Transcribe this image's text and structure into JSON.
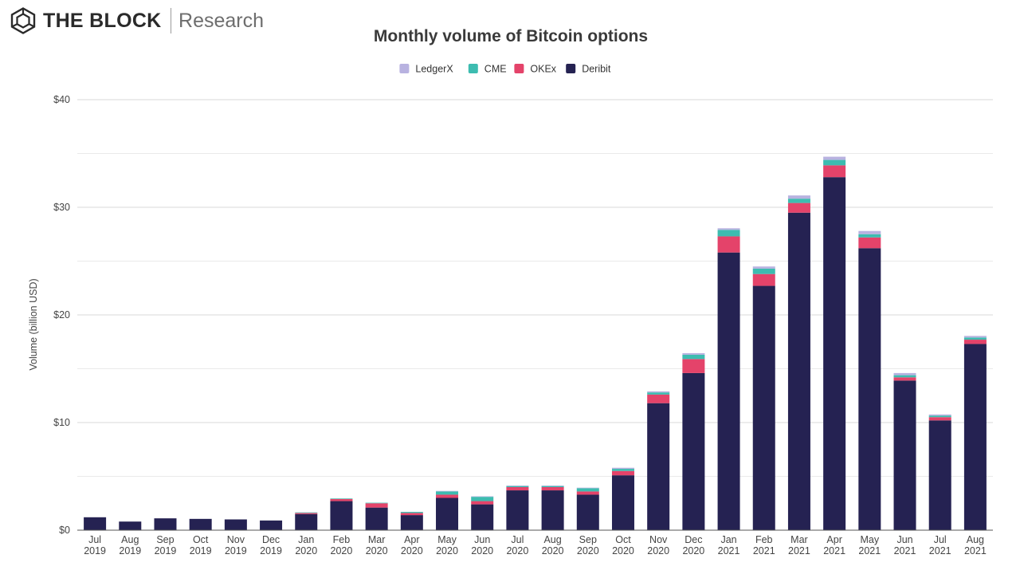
{
  "brand": {
    "name": "THE BLOCK",
    "sub": "Research"
  },
  "chart_data": {
    "type": "bar",
    "stacked": true,
    "title": "Monthly volume of Bitcoin options",
    "ylabel": "Volume (billion USD)",
    "xlabel": "",
    "ylim": [
      0,
      40
    ],
    "yticks": [
      0,
      10,
      20,
      30,
      40
    ],
    "ytick_labels": [
      "$0",
      "$10",
      "$20",
      "$30",
      "$40"
    ],
    "grid": true,
    "legend_position": "top-center",
    "categories": [
      [
        "Jul",
        "2019"
      ],
      [
        "Aug",
        "2019"
      ],
      [
        "Sep",
        "2019"
      ],
      [
        "Oct",
        "2019"
      ],
      [
        "Nov",
        "2019"
      ],
      [
        "Dec",
        "2019"
      ],
      [
        "Jan",
        "2020"
      ],
      [
        "Feb",
        "2020"
      ],
      [
        "Mar",
        "2020"
      ],
      [
        "Apr",
        "2020"
      ],
      [
        "May",
        "2020"
      ],
      [
        "Jun",
        "2020"
      ],
      [
        "Jul",
        "2020"
      ],
      [
        "Aug",
        "2020"
      ],
      [
        "Sep",
        "2020"
      ],
      [
        "Oct",
        "2020"
      ],
      [
        "Nov",
        "2020"
      ],
      [
        "Dec",
        "2020"
      ],
      [
        "Jan",
        "2021"
      ],
      [
        "Feb",
        "2021"
      ],
      [
        "Mar",
        "2021"
      ],
      [
        "Apr",
        "2021"
      ],
      [
        "May",
        "2021"
      ],
      [
        "Jun",
        "2021"
      ],
      [
        "Jul",
        "2021"
      ],
      [
        "Aug",
        "2021"
      ]
    ],
    "series": [
      {
        "name": "Deribit",
        "color": "#252252",
        "values": [
          1.2,
          0.8,
          1.1,
          1.05,
          1.0,
          0.9,
          1.5,
          2.7,
          2.1,
          1.4,
          3.0,
          2.4,
          3.7,
          3.7,
          3.3,
          5.1,
          11.8,
          14.6,
          25.8,
          22.7,
          29.5,
          32.8,
          26.2,
          13.9,
          10.2,
          17.3
        ]
      },
      {
        "name": "OKEx",
        "color": "#e4436a",
        "values": [
          0,
          0,
          0,
          0,
          0,
          0,
          0.1,
          0.2,
          0.4,
          0.2,
          0.3,
          0.3,
          0.3,
          0.3,
          0.3,
          0.4,
          0.8,
          1.3,
          1.5,
          1.1,
          0.9,
          1.1,
          1.0,
          0.3,
          0.3,
          0.4
        ]
      },
      {
        "name": "CME",
        "color": "#3dbcb0",
        "values": [
          0,
          0,
          0,
          0,
          0,
          0,
          0.05,
          0.05,
          0.05,
          0.1,
          0.3,
          0.4,
          0.1,
          0.1,
          0.3,
          0.2,
          0.2,
          0.4,
          0.6,
          0.5,
          0.4,
          0.5,
          0.3,
          0.2,
          0.15,
          0.2
        ]
      },
      {
        "name": "LedgerX",
        "color": "#b8b2e0",
        "values": [
          0,
          0,
          0,
          0,
          0,
          0,
          0,
          0,
          0,
          0,
          0.05,
          0.05,
          0.05,
          0.05,
          0.05,
          0.1,
          0.1,
          0.15,
          0.15,
          0.2,
          0.3,
          0.3,
          0.3,
          0.2,
          0.1,
          0.15
        ]
      }
    ],
    "legend_order": [
      "LedgerX",
      "CME",
      "OKEx",
      "Deribit"
    ]
  }
}
